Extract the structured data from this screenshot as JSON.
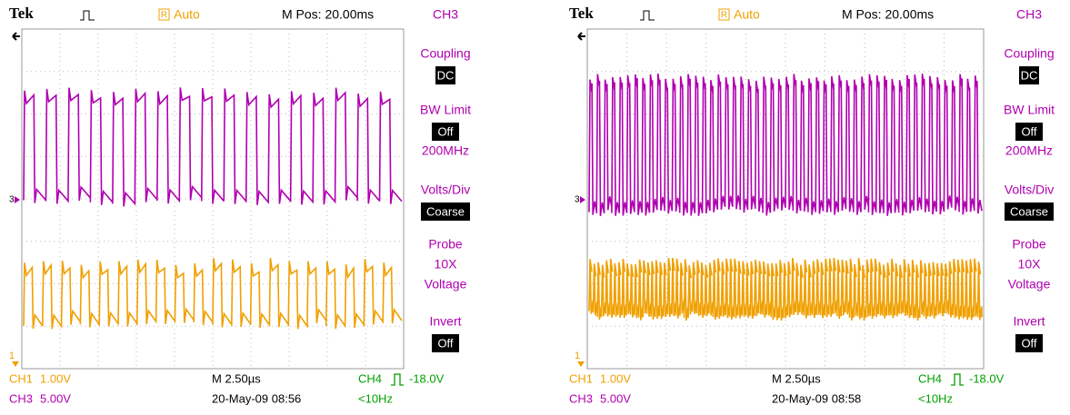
{
  "screens": [
    {
      "header": {
        "brand": "Tek",
        "acq_badge": "R",
        "acq_mode": "Auto",
        "position": "M Pos: 20.00ms",
        "menu_title": "CH3"
      },
      "menu": [
        {
          "label": "Coupling",
          "value": "DC"
        },
        {
          "label": "BW Limit",
          "value": "Off",
          "details": [
            "200MHz"
          ]
        },
        {
          "label": "Volts/Div",
          "value": "Coarse"
        },
        {
          "label": "Probe",
          "details": [
            "10X",
            "Voltage"
          ]
        },
        {
          "label": "Invert",
          "value": "Off"
        }
      ],
      "markers": {
        "ch3": "3",
        "ch1": "1"
      },
      "footer": {
        "ch1_name": "CH1",
        "ch1_scale": "1.00V",
        "timebase": "M 2.50µs",
        "trig_source": "CH4",
        "trig_level": "-18.0V",
        "ch3_name": "CH3",
        "ch3_scale": "5.00V",
        "datetime": "20-May-09 08:56",
        "trig_freq": "<10Hz"
      }
    },
    {
      "header": {
        "brand": "Tek",
        "acq_badge": "R",
        "acq_mode": "Auto",
        "position": "M Pos: 20.00ms",
        "menu_title": "CH3"
      },
      "menu": [
        {
          "label": "Coupling",
          "value": "DC"
        },
        {
          "label": "BW Limit",
          "value": "Off",
          "details": [
            "200MHz"
          ]
        },
        {
          "label": "Volts/Div",
          "value": "Coarse"
        },
        {
          "label": "Probe",
          "details": [
            "10X",
            "Voltage"
          ]
        },
        {
          "label": "Invert",
          "value": "Off"
        }
      ],
      "markers": {
        "ch3": "3",
        "ch1": "1"
      },
      "footer": {
        "ch1_name": "CH1",
        "ch1_scale": "1.00V",
        "timebase": "M 2.50µs",
        "trig_source": "CH4",
        "trig_level": "-18.0V",
        "ch3_name": "CH3",
        "ch3_scale": "5.00V",
        "datetime": "20-May-09 08:58",
        "trig_freq": "<10Hz"
      }
    }
  ]
}
